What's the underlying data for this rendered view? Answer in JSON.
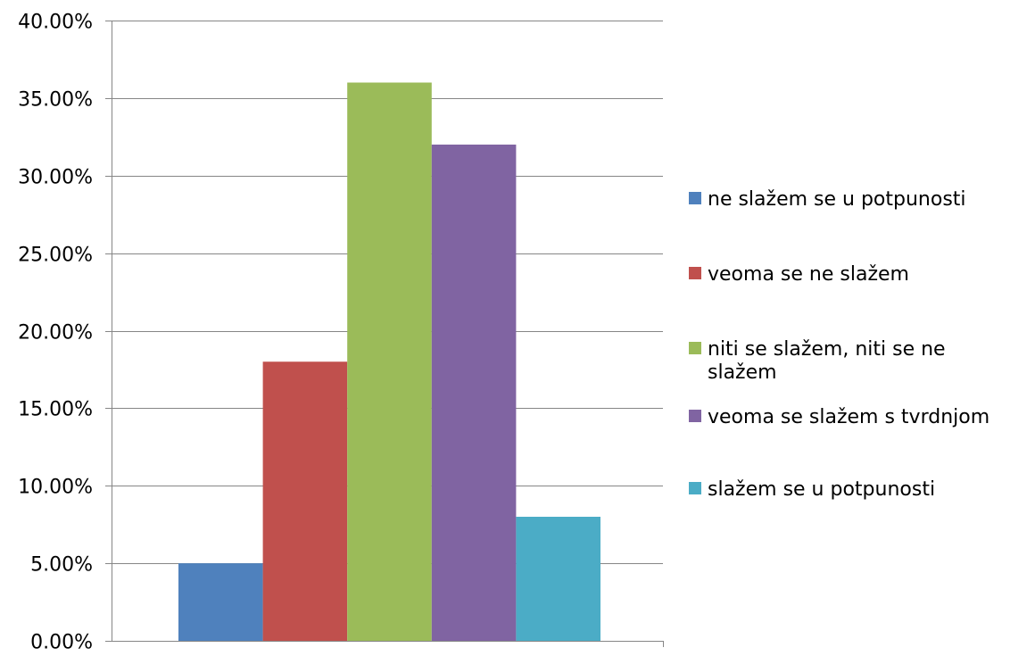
{
  "chart_data": {
    "type": "bar",
    "title": "",
    "xlabel": "",
    "ylabel": "",
    "ylim": [
      0,
      40
    ],
    "y_ticks": [
      0,
      5,
      10,
      15,
      20,
      25,
      30,
      35,
      40
    ],
    "y_tick_labels": [
      "0.00%",
      "5.00%",
      "10.00%",
      "15.00%",
      "20.00%",
      "25.00%",
      "30.00%",
      "35.00%",
      "40.00%"
    ],
    "grid": true,
    "legend_position": "right",
    "series": [
      {
        "name": "ne slažem se u potpunosti",
        "value": 5,
        "color": "#4F81BD"
      },
      {
        "name": "veoma se ne slažem",
        "value": 18,
        "color": "#C0504D"
      },
      {
        "name": "niti se slažem, niti se ne slažem",
        "legend_lines": [
          "niti se slažem, niti se ne",
          "slažem"
        ],
        "value": 36,
        "color": "#9BBB59"
      },
      {
        "name": "veoma se slažem s tvrdnjom",
        "value": 32,
        "color": "#8064A2"
      },
      {
        "name": "slažem se u potpunosti",
        "value": 8,
        "color": "#4BACC6"
      }
    ]
  }
}
